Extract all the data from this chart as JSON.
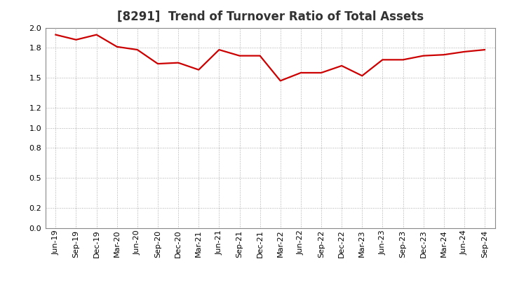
{
  "title": "[8291]  Trend of Turnover Ratio of Total Assets",
  "line_color": "#cc0000",
  "background_color": "#ffffff",
  "grid_color": "#aaaaaa",
  "ylim": [
    0.0,
    2.0
  ],
  "yticks": [
    0.0,
    0.2,
    0.5,
    0.8,
    1.0,
    1.2,
    1.5,
    1.8,
    2.0
  ],
  "labels": [
    "Jun-19",
    "Sep-19",
    "Dec-19",
    "Mar-20",
    "Jun-20",
    "Sep-20",
    "Dec-20",
    "Mar-21",
    "Jun-21",
    "Sep-21",
    "Dec-21",
    "Mar-22",
    "Jun-22",
    "Sep-22",
    "Dec-22",
    "Mar-23",
    "Jun-23",
    "Sep-23",
    "Dec-23",
    "Mar-24",
    "Jun-24",
    "Sep-24"
  ],
  "values": [
    1.93,
    1.88,
    1.93,
    1.81,
    1.78,
    1.64,
    1.65,
    1.58,
    1.78,
    1.72,
    1.72,
    1.47,
    1.55,
    1.55,
    1.62,
    1.52,
    1.68,
    1.68,
    1.72,
    1.73,
    1.76,
    1.78
  ],
  "title_fontsize": 12,
  "tick_fontsize": 8,
  "line_width": 1.6
}
